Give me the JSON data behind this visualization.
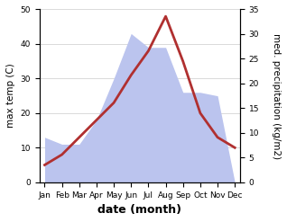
{
  "months": [
    "Jan",
    "Feb",
    "Mar",
    "Apr",
    "May",
    "Jun",
    "Jul",
    "Aug",
    "Sep",
    "Oct",
    "Nov",
    "Dec"
  ],
  "temperature": [
    5,
    8,
    13,
    18,
    23,
    31,
    38,
    48,
    35,
    20,
    13,
    10
  ],
  "precipitation": [
    13,
    11,
    11,
    18,
    30,
    43,
    39,
    39,
    26,
    26,
    25,
    0
  ],
  "temp_color": "#b03030",
  "precip_fill_color": "#bbc4ee",
  "xlabel": "date (month)",
  "ylabel_left": "max temp (C)",
  "ylabel_right": "med. precipitation (kg/m2)",
  "ylim_left": [
    0,
    50
  ],
  "ylim_right": [
    0,
    35
  ],
  "yticks_left": [
    0,
    10,
    20,
    30,
    40,
    50
  ],
  "yticks_right": [
    0,
    5,
    10,
    15,
    20,
    25,
    30,
    35
  ],
  "bg_color": "#ffffff",
  "line_width": 2.0,
  "label_fontsize": 7.5,
  "tick_fontsize": 6.5,
  "xlabel_fontsize": 9
}
